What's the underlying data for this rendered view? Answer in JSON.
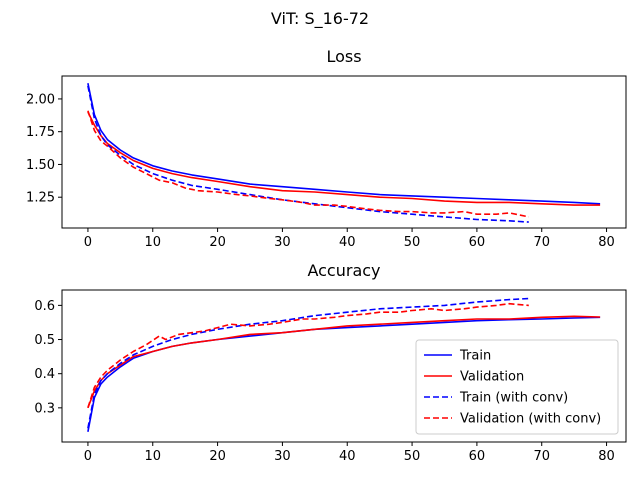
{
  "figure_title": "ViT: S_16-72",
  "chart_data": [
    {
      "type": "line",
      "title": "Loss",
      "xlim": [
        -4,
        83
      ],
      "ylim": [
        1.015,
        2.175
      ],
      "xticks": [
        0,
        10,
        20,
        30,
        40,
        50,
        60,
        70,
        80
      ],
      "yticks": [
        1.25,
        1.5,
        1.75,
        2.0
      ],
      "ytick_labels": [
        "1.25",
        "1.50",
        "1.75",
        "2.00"
      ],
      "series": [
        {
          "name": "Train",
          "color": "#0000ff",
          "dash": "solid",
          "x": [
            0,
            1,
            2,
            3,
            5,
            7,
            10,
            13,
            16,
            20,
            25,
            30,
            35,
            40,
            45,
            50,
            55,
            60,
            65,
            70,
            75,
            79
          ],
          "y": [
            2.12,
            1.88,
            1.76,
            1.69,
            1.61,
            1.55,
            1.49,
            1.45,
            1.42,
            1.39,
            1.35,
            1.33,
            1.31,
            1.29,
            1.27,
            1.26,
            1.25,
            1.24,
            1.23,
            1.22,
            1.21,
            1.2
          ]
        },
        {
          "name": "Validation",
          "color": "#ff0000",
          "dash": "solid",
          "x": [
            0,
            1,
            2,
            3,
            5,
            7,
            10,
            13,
            16,
            20,
            25,
            30,
            35,
            40,
            45,
            50,
            55,
            60,
            65,
            70,
            75,
            79
          ],
          "y": [
            1.9,
            1.8,
            1.72,
            1.66,
            1.59,
            1.53,
            1.47,
            1.43,
            1.4,
            1.37,
            1.33,
            1.3,
            1.29,
            1.27,
            1.25,
            1.24,
            1.22,
            1.21,
            1.21,
            1.2,
            1.19,
            1.19
          ]
        },
        {
          "name": "Train (with conv)",
          "color": "#0000ff",
          "dash": "dashed",
          "x": [
            0,
            1,
            2,
            3,
            5,
            7,
            10,
            13,
            16,
            20,
            25,
            30,
            35,
            40,
            45,
            50,
            55,
            60,
            65,
            68
          ],
          "y": [
            2.1,
            1.85,
            1.72,
            1.65,
            1.57,
            1.5,
            1.43,
            1.38,
            1.34,
            1.31,
            1.27,
            1.23,
            1.2,
            1.17,
            1.14,
            1.12,
            1.1,
            1.08,
            1.07,
            1.06
          ]
        },
        {
          "name": "Validation (with conv)",
          "color": "#ff0000",
          "dash": "dashed",
          "x": [
            0,
            1,
            2,
            3,
            5,
            7,
            9,
            11,
            13,
            15,
            17,
            20,
            23,
            25,
            28,
            30,
            33,
            35,
            38,
            40,
            43,
            45,
            48,
            50,
            53,
            55,
            58,
            60,
            63,
            65,
            68
          ],
          "y": [
            1.91,
            1.76,
            1.68,
            1.64,
            1.55,
            1.48,
            1.43,
            1.38,
            1.36,
            1.32,
            1.3,
            1.29,
            1.27,
            1.26,
            1.24,
            1.23,
            1.21,
            1.19,
            1.19,
            1.18,
            1.16,
            1.15,
            1.14,
            1.14,
            1.13,
            1.13,
            1.14,
            1.12,
            1.12,
            1.13,
            1.1
          ]
        }
      ]
    },
    {
      "type": "line",
      "title": "Accuracy",
      "xlim": [
        -4,
        83
      ],
      "ylim": [
        0.2,
        0.645
      ],
      "xticks": [
        0,
        10,
        20,
        30,
        40,
        50,
        60,
        70,
        80
      ],
      "yticks": [
        0.3,
        0.4,
        0.5,
        0.6
      ],
      "ytick_labels": [
        "0.3",
        "0.4",
        "0.5",
        "0.6"
      ],
      "legend_position": "lower-right",
      "series": [
        {
          "name": "Train",
          "color": "#0000ff",
          "dash": "solid",
          "x": [
            0,
            1,
            2,
            3,
            5,
            7,
            10,
            13,
            16,
            20,
            25,
            30,
            35,
            40,
            45,
            50,
            55,
            60,
            65,
            70,
            75,
            79
          ],
          "y": [
            0.23,
            0.33,
            0.37,
            0.39,
            0.42,
            0.445,
            0.465,
            0.48,
            0.49,
            0.5,
            0.51,
            0.52,
            0.53,
            0.535,
            0.54,
            0.545,
            0.55,
            0.555,
            0.558,
            0.56,
            0.563,
            0.565
          ]
        },
        {
          "name": "Validation",
          "color": "#ff0000",
          "dash": "solid",
          "x": [
            0,
            1,
            2,
            3,
            5,
            7,
            10,
            13,
            16,
            20,
            25,
            30,
            35,
            40,
            45,
            50,
            55,
            60,
            65,
            70,
            75,
            79
          ],
          "y": [
            0.3,
            0.35,
            0.38,
            0.4,
            0.425,
            0.45,
            0.465,
            0.48,
            0.49,
            0.5,
            0.515,
            0.52,
            0.53,
            0.54,
            0.545,
            0.55,
            0.555,
            0.56,
            0.56,
            0.565,
            0.568,
            0.566
          ]
        },
        {
          "name": "Train (with conv)",
          "color": "#0000ff",
          "dash": "dashed",
          "x": [
            0,
            1,
            2,
            3,
            5,
            7,
            10,
            13,
            16,
            20,
            25,
            30,
            35,
            40,
            45,
            50,
            55,
            60,
            65,
            68
          ],
          "y": [
            0.24,
            0.34,
            0.38,
            0.4,
            0.43,
            0.455,
            0.48,
            0.5,
            0.515,
            0.53,
            0.545,
            0.555,
            0.57,
            0.58,
            0.59,
            0.595,
            0.6,
            0.61,
            0.617,
            0.62
          ]
        },
        {
          "name": "Validation (with conv)",
          "color": "#ff0000",
          "dash": "dashed",
          "x": [
            0,
            1,
            2,
            3,
            5,
            7,
            9,
            11,
            12,
            14,
            16,
            18,
            20,
            22,
            25,
            28,
            30,
            33,
            35,
            38,
            40,
            43,
            45,
            48,
            50,
            53,
            55,
            58,
            60,
            63,
            65,
            68
          ],
          "y": [
            0.3,
            0.36,
            0.39,
            0.41,
            0.44,
            0.465,
            0.485,
            0.51,
            0.5,
            0.515,
            0.52,
            0.525,
            0.535,
            0.545,
            0.54,
            0.545,
            0.55,
            0.56,
            0.56,
            0.565,
            0.57,
            0.575,
            0.58,
            0.58,
            0.585,
            0.59,
            0.585,
            0.59,
            0.595,
            0.6,
            0.605,
            0.6
          ]
        }
      ]
    }
  ]
}
